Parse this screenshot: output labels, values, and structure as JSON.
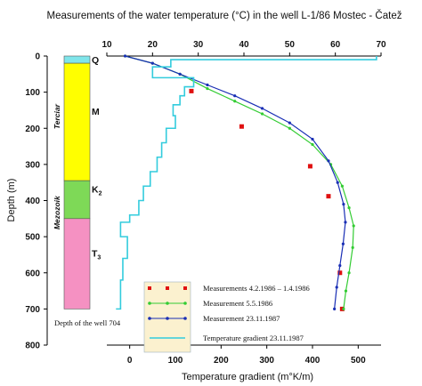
{
  "chart_data": {
    "type": "line",
    "title": "Measurements of the water temperature (°C) in the well L-1/86 Mostec - Čatež",
    "ylabel": "Depth (m)",
    "x_top_label": "",
    "x_bottom_label": "Temperature gradient (m°K/m)",
    "ylim": [
      0,
      800
    ],
    "y_ticks": [
      "0",
      "100",
      "200",
      "300",
      "400",
      "500",
      "600",
      "700",
      "800"
    ],
    "x_top_lim": [
      10,
      70
    ],
    "x_top_ticks": [
      "10",
      "20",
      "30",
      "40",
      "50",
      "60",
      "70"
    ],
    "x_bottom_lim": [
      -50,
      550
    ],
    "x_bottom_ticks": [
      "0",
      "100",
      "200",
      "300",
      "400",
      "500"
    ],
    "grid": false,
    "legend_placement": "bottom-left",
    "series": [
      {
        "name": "Measurements 4.2.1986 – 1.4.1986",
        "axis": "temperature",
        "color": "#e01010",
        "marker": "square",
        "points": [
          [
            28.5,
            97
          ],
          [
            39.5,
            195
          ],
          [
            54.5,
            305
          ],
          [
            58.5,
            388
          ],
          [
            61.0,
            600
          ],
          [
            61.5,
            700
          ]
        ]
      },
      {
        "name": "Measurement 5.5.1986",
        "axis": "temperature",
        "color": "#33cc33",
        "marker": "dot",
        "points": [
          [
            14.0,
            0
          ],
          [
            20.0,
            20
          ],
          [
            26.0,
            50
          ],
          [
            32.0,
            90
          ],
          [
            38.0,
            125
          ],
          [
            44.0,
            160
          ],
          [
            50.0,
            200
          ],
          [
            55.0,
            245
          ],
          [
            59.0,
            300
          ],
          [
            61.5,
            360
          ],
          [
            63.0,
            420
          ],
          [
            64.0,
            470
          ],
          [
            63.8,
            530
          ],
          [
            63.0,
            600
          ],
          [
            62.3,
            650
          ],
          [
            61.8,
            700
          ]
        ]
      },
      {
        "name": "Measurement 23.11.1987",
        "axis": "temperature",
        "color": "#1a2fb5",
        "marker": "dot",
        "points": [
          [
            14.0,
            0
          ],
          [
            20.0,
            20
          ],
          [
            26.0,
            50
          ],
          [
            32.0,
            80
          ],
          [
            38.0,
            110
          ],
          [
            44.0,
            145
          ],
          [
            50.0,
            185
          ],
          [
            55.0,
            230
          ],
          [
            58.5,
            290
          ],
          [
            60.5,
            350
          ],
          [
            61.8,
            410
          ],
          [
            62.2,
            460
          ],
          [
            61.7,
            520
          ],
          [
            61.0,
            580
          ],
          [
            60.3,
            640
          ],
          [
            59.8,
            700
          ]
        ]
      },
      {
        "name": "Temperature gradient 23.11.1987",
        "axis": "gradient",
        "color": "#33ccdd",
        "marker": "none",
        "points": [
          [
            540,
            0
          ],
          [
            90,
            10
          ],
          [
            50,
            30
          ],
          [
            140,
            60
          ],
          [
            120,
            85
          ],
          [
            110,
            110
          ],
          [
            95,
            135
          ],
          [
            100,
            165
          ],
          [
            80,
            200
          ],
          [
            70,
            240
          ],
          [
            60,
            280
          ],
          [
            45,
            320
          ],
          [
            30,
            360
          ],
          [
            20,
            400
          ],
          [
            0,
            440
          ],
          [
            -20,
            460
          ],
          [
            -5,
            500
          ],
          [
            -15,
            560
          ],
          [
            -20,
            620
          ],
          [
            -30,
            700
          ]
        ]
      }
    ]
  },
  "strat_column": {
    "units": [
      {
        "label": "Q",
        "top": 0,
        "bottom": 20,
        "color": "#7fe5ea"
      },
      {
        "label": "M",
        "top": 20,
        "bottom": 345,
        "color": "#ffff00"
      },
      {
        "label": "K",
        "sub": "2",
        "top": 345,
        "bottom": 450,
        "color": "#7ed957"
      },
      {
        "label": "T",
        "sub": "3",
        "top": 450,
        "bottom": 700,
        "color": "#f591c2"
      }
    ],
    "eras": [
      {
        "label": "Terciar",
        "top": 20,
        "bottom": 345
      },
      {
        "label": "Mezozoik",
        "top": 345,
        "bottom": 700
      }
    ],
    "depth_note": "Depth of the well 704"
  }
}
